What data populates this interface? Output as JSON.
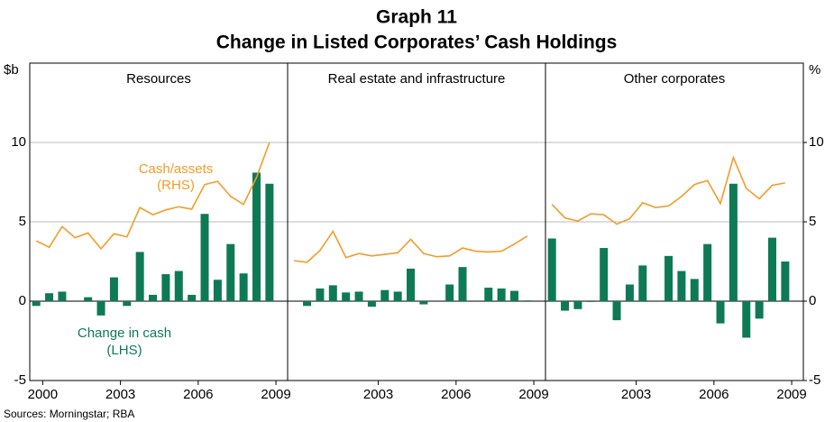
{
  "header": {
    "title": "Graph 11",
    "subtitle": "Change in Listed Corporates’ Cash Holdings"
  },
  "footer": {
    "sources": "Sources: Morningstar; RBA"
  },
  "chart_data": [
    {
      "type": "bar",
      "title": "Resources",
      "y_label": "$b",
      "xlim": [
        1999.5,
        2009.45
      ],
      "xticks": [
        2000,
        2003,
        2006,
        2009
      ],
      "ylim": [
        -5,
        15
      ],
      "yticks": [
        -5,
        0,
        5,
        10
      ],
      "y2lim": [
        -5,
        15
      ],
      "grid": true,
      "annotations": [
        "Cash/assets",
        "(RHS)",
        "Change in cash",
        "(LHS)"
      ],
      "x": [
        1999.75,
        2000.25,
        2000.75,
        2001.25,
        2001.75,
        2002.25,
        2002.75,
        2003.25,
        2003.75,
        2004.25,
        2004.75,
        2005.25,
        2005.75,
        2006.25,
        2006.75,
        2007.25,
        2007.75,
        2008.25,
        2008.75
      ],
      "series": [
        {
          "type": "bar",
          "color": "#0e7a55",
          "values": [
            -0.3,
            0.5,
            0.6,
            0,
            0.25,
            -0.9,
            1.5,
            -0.3,
            3.1,
            0.4,
            1.7,
            1.9,
            0.4,
            5.5,
            1.35,
            3.6,
            1.75,
            8.1,
            7.4
          ]
        },
        {
          "type": "line",
          "axis": "y2",
          "color": "#f39c2a",
          "values": [
            3.8,
            3.4,
            4.7,
            4.0,
            4.3,
            3.3,
            4.25,
            4.05,
            5.9,
            5.45,
            5.75,
            5.95,
            5.8,
            7.35,
            7.55,
            6.6,
            6.1,
            7.8,
            10.0
          ]
        }
      ]
    },
    {
      "type": "bar",
      "title": "Real estate and infrastructure",
      "xlim": [
        1999.5,
        2009.45
      ],
      "xticks": [
        2003,
        2006,
        2009
      ],
      "ylim": [
        -5,
        15
      ],
      "y2lim": [
        -5,
        15
      ],
      "x": [
        1999.75,
        2000.25,
        2000.75,
        2001.25,
        2001.75,
        2002.25,
        2002.75,
        2003.25,
        2003.75,
        2004.25,
        2004.75,
        2005.25,
        2005.75,
        2006.25,
        2006.75,
        2007.25,
        2007.75,
        2008.25,
        2008.75
      ],
      "series": [
        {
          "type": "bar",
          "color": "#0e7a55",
          "values": [
            null,
            -0.3,
            0.8,
            1.0,
            0.55,
            0.6,
            -0.35,
            0.7,
            0.6,
            2.05,
            -0.2,
            0,
            1.05,
            2.15,
            0,
            0.85,
            0.8,
            0.65,
            0.05
          ]
        },
        {
          "type": "line",
          "axis": "y2",
          "color": "#f39c2a",
          "values": [
            2.55,
            2.45,
            3.2,
            4.4,
            2.75,
            3.0,
            2.85,
            2.95,
            3.05,
            3.9,
            3.0,
            2.8,
            2.85,
            3.35,
            3.15,
            3.1,
            3.15,
            3.6,
            4.1
          ]
        }
      ]
    },
    {
      "type": "bar",
      "title": "Other corporates",
      "y2_label": "%",
      "xlim": [
        1999.5,
        2009.45
      ],
      "xticks": [
        2003,
        2006,
        2009
      ],
      "ylim": [
        -5,
        15
      ],
      "y2lim": [
        -5,
        15
      ],
      "y2ticks": [
        -5,
        0,
        5,
        10
      ],
      "x": [
        1999.75,
        2000.25,
        2000.75,
        2001.25,
        2001.75,
        2002.25,
        2002.75,
        2003.25,
        2003.75,
        2004.25,
        2004.75,
        2005.25,
        2005.75,
        2006.25,
        2006.75,
        2007.25,
        2007.75,
        2008.25,
        2008.75
      ],
      "series": [
        {
          "type": "bar",
          "color": "#0e7a55",
          "values": [
            3.95,
            -0.6,
            -0.5,
            -0.05,
            3.35,
            -1.2,
            1.05,
            2.25,
            0,
            2.85,
            1.9,
            1.4,
            3.6,
            -1.4,
            7.4,
            -2.3,
            -1.1,
            4.0,
            2.5
          ]
        },
        {
          "type": "line",
          "axis": "y2",
          "color": "#f39c2a",
          "values": [
            6.1,
            5.25,
            5.05,
            5.5,
            5.45,
            4.85,
            5.2,
            6.2,
            5.9,
            6.0,
            6.6,
            7.35,
            7.6,
            6.15,
            9.05,
            7.1,
            6.45,
            7.3,
            7.45
          ]
        }
      ]
    }
  ]
}
